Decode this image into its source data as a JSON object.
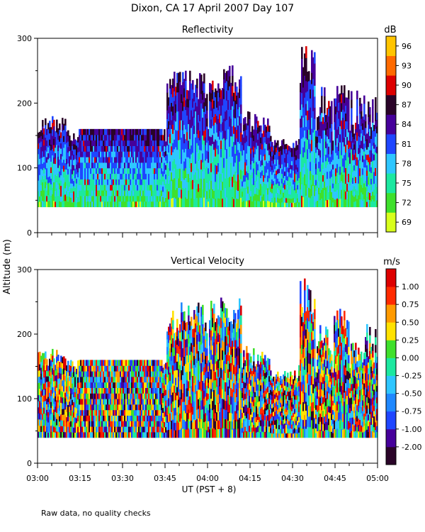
{
  "title": "Dixon, CA 17 April 2007  Day 107",
  "ylabel": "Altitude (m)",
  "xlabel": "UT  (PST + 8)",
  "footnote": "Raw data, no quality checks",
  "x_ticks": [
    "03:00",
    "03:15",
    "03:30",
    "03:45",
    "04:00",
    "04:15",
    "04:30",
    "04:45",
    "05:00"
  ],
  "chart_data": [
    {
      "type": "heatmap",
      "title": "Reflectivity",
      "colorbar_unit": "dB",
      "colorbar_ticks": [
        "69",
        "72",
        "75",
        "78",
        "81",
        "84",
        "87",
        "90",
        "93",
        "96"
      ],
      "colorbar_colors": [
        "#d8ff1c",
        "#3fe02c",
        "#1ce8a0",
        "#2ec6ff",
        "#1f46ff",
        "#46009a",
        "#2a0428",
        "#dd0000",
        "#ff6a00",
        "#ffc400"
      ],
      "colorbar_range": [
        67.5,
        97.5
      ],
      "y_ticks": [
        "0",
        "100",
        "200",
        "300"
      ],
      "ylim": [
        0,
        300
      ],
      "xlim_minutes": [
        0,
        120
      ],
      "data_altitude_range_m": [
        40,
        300
      ]
    },
    {
      "type": "heatmap",
      "title": "Vertical Velocity",
      "colorbar_unit": "m/s",
      "colorbar_ticks": [
        "-2.00",
        "-1.00",
        "-0.75",
        "-0.50",
        "-0.25",
        "0.00",
        "0.25",
        "0.50",
        "0.75",
        "1.00"
      ],
      "colorbar_colors": [
        "#2a0428",
        "#46009a",
        "#1f46ff",
        "#1f88ff",
        "#2ec6ff",
        "#1ce8a0",
        "#3fe02c",
        "#ffe200",
        "#ff9a00",
        "#ff2a00",
        "#dd0000"
      ],
      "y_ticks": [
        "0",
        "100",
        "200",
        "300"
      ],
      "ylim": [
        0,
        300
      ],
      "xlim_minutes": [
        0,
        120
      ],
      "data_altitude_range_m": [
        40,
        300
      ]
    }
  ]
}
